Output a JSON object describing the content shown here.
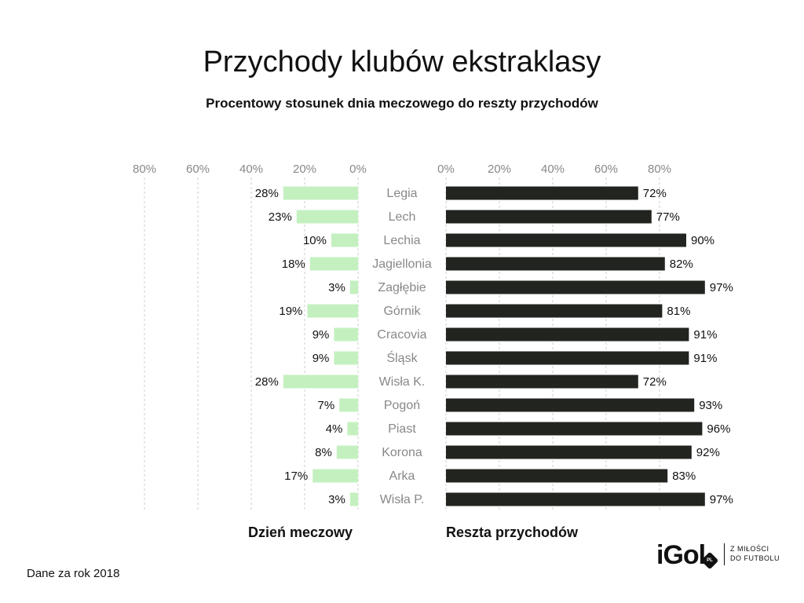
{
  "header": {
    "title": "Przychody klubów ekstraklasy",
    "subtitle": "Procentowy stosunek dnia meczowego do reszty przychodów"
  },
  "chart_data": {
    "type": "bar",
    "title": "Przychody klubów ekstraklasy",
    "subtitle": "Procentowy stosunek dnia meczowego do reszty przychodów",
    "categories": [
      "Legia",
      "Lech",
      "Lechia",
      "Jagiellonia",
      "Zagłębie",
      "Górnik",
      "Cracovia",
      "Śląsk",
      "Wisła K.",
      "Pogoń",
      "Piast",
      "Korona",
      "Arka",
      "Wisła P."
    ],
    "series": [
      {
        "name": "Dzień meczowy",
        "values": [
          28,
          23,
          10,
          18,
          3,
          19,
          9,
          9,
          28,
          7,
          4,
          8,
          17,
          3
        ],
        "color": "#c4f0c0",
        "direction": "left"
      },
      {
        "name": "Reszta przychodów",
        "values": [
          72,
          77,
          90,
          82,
          97,
          81,
          91,
          91,
          72,
          93,
          96,
          92,
          83,
          97
        ],
        "color": "#22241f",
        "direction": "right"
      }
    ],
    "left_ticks": [
      "80%",
      "60%",
      "40%",
      "20%",
      "0%"
    ],
    "right_ticks": [
      "0%",
      "20%",
      "40%",
      "60%",
      "80%"
    ],
    "value_suffix": "%",
    "xlim": [
      0,
      100
    ],
    "grid": true,
    "label_color": "#888888",
    "grid_color": "#cccccc"
  },
  "footer": {
    "note": "Dane za rok 2018",
    "brand": "iGol",
    "brand_badge": "PL",
    "tagline_line1": "Z MIŁOŚCI",
    "tagline_line2": "DO FUTBOLU"
  }
}
